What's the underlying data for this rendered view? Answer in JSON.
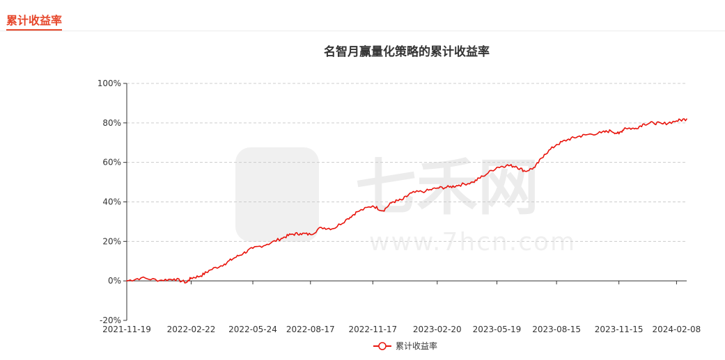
{
  "header": {
    "title": "累计收益率"
  },
  "watermark": {
    "brand": "七禾网",
    "url": "www.7hcn.com"
  },
  "chart_data": {
    "type": "line",
    "title": "名智月赢量化策略的累计收益率",
    "xlabel": "",
    "ylabel": "",
    "ylim": [
      -20,
      100
    ],
    "y_ticks": [
      "-20%",
      "0%",
      "20%",
      "40%",
      "60%",
      "80%",
      "100%"
    ],
    "x_ticks": [
      "2021-11-19",
      "2022-02-22",
      "2022-05-24",
      "2022-08-17",
      "2022-11-17",
      "2023-02-20",
      "2023-05-19",
      "2023-08-15",
      "2023-11-15",
      "2024-02-08"
    ],
    "grid": true,
    "legend_position": "bottom-center",
    "series": [
      {
        "name": "累计收益率",
        "color": "#e8140c",
        "x": [
          "2021-11-19",
          "2021-12-10",
          "2022-01-07",
          "2022-01-28",
          "2022-02-15",
          "2022-02-22",
          "2022-03-08",
          "2022-03-22",
          "2022-04-12",
          "2022-04-26",
          "2022-05-10",
          "2022-05-24",
          "2022-06-14",
          "2022-07-05",
          "2022-07-19",
          "2022-08-02",
          "2022-08-17",
          "2022-09-02",
          "2022-09-20",
          "2022-10-11",
          "2022-10-25",
          "2022-11-17",
          "2022-12-02",
          "2022-12-16",
          "2022-12-30",
          "2023-01-13",
          "2023-02-03",
          "2023-02-20",
          "2023-03-10",
          "2023-03-24",
          "2023-04-14",
          "2023-04-28",
          "2023-05-19",
          "2023-06-02",
          "2023-06-16",
          "2023-06-30",
          "2023-07-14",
          "2023-07-28",
          "2023-08-15",
          "2023-08-31",
          "2023-09-15",
          "2023-09-28",
          "2023-10-20",
          "2023-11-03",
          "2023-11-15",
          "2023-11-24",
          "2023-12-08",
          "2023-12-22",
          "2024-01-05",
          "2024-01-19",
          "2024-02-08",
          "2024-02-23"
        ],
        "values": [
          0,
          1.5,
          0.3,
          1.0,
          -0.8,
          1.5,
          2.5,
          5.5,
          8.5,
          11.5,
          14.0,
          16.5,
          18.5,
          21.5,
          23.5,
          24.0,
          23.5,
          27.0,
          26.5,
          31.5,
          35.0,
          38.0,
          35.5,
          40.0,
          41.0,
          44.5,
          45.5,
          47.0,
          47.5,
          48.5,
          50.0,
          53.0,
          57.5,
          58.5,
          58.0,
          55.5,
          57.5,
          64.0,
          69.0,
          71.5,
          73.0,
          74.0,
          75.0,
          76.0,
          74.5,
          77.5,
          77.0,
          79.5,
          80.0,
          79.5,
          81.0,
          82.0
        ]
      }
    ]
  }
}
